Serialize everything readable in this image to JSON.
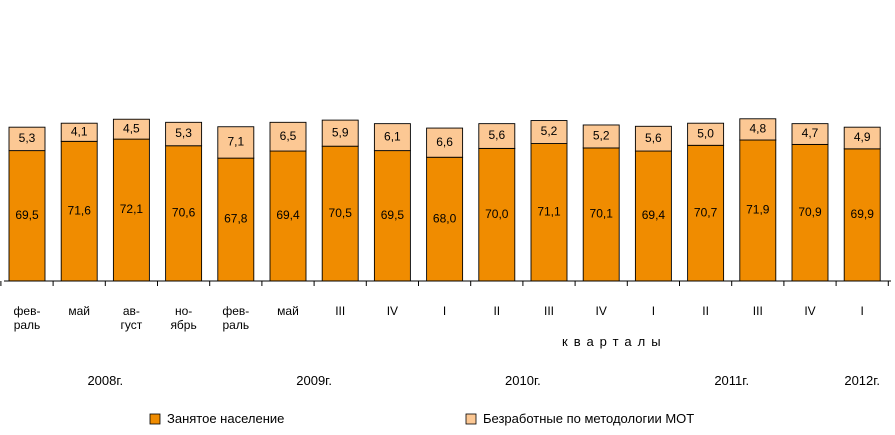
{
  "chart_data": {
    "type": "bar",
    "stacked": true,
    "categories": [
      [
        "фев-",
        "раль"
      ],
      [
        "май"
      ],
      [
        "ав-",
        "густ"
      ],
      [
        "но-",
        "ябрь"
      ],
      [
        "фев-",
        "раль"
      ],
      [
        "май"
      ],
      [
        "III"
      ],
      [
        "IV"
      ],
      [
        "I"
      ],
      [
        "II"
      ],
      [
        "III"
      ],
      [
        "IV"
      ],
      [
        "I"
      ],
      [
        "II"
      ],
      [
        "III"
      ],
      [
        "IV"
      ],
      [
        "I"
      ]
    ],
    "series": [
      {
        "name": "Занятое население",
        "color": "#f08c00",
        "values": [
          69.5,
          71.6,
          72.1,
          70.6,
          67.8,
          69.4,
          70.5,
          69.5,
          68.0,
          70.0,
          71.1,
          70.1,
          69.4,
          70.7,
          71.9,
          70.9,
          69.9
        ],
        "labels": [
          "69,5",
          "71,6",
          "72,1",
          "70,6",
          "67,8",
          "69,4",
          "70,5",
          "69,5",
          "68,0",
          "70,0",
          "71,1",
          "70,1",
          "69,4",
          "70,7",
          "71,9",
          "70,9",
          "69,9"
        ]
      },
      {
        "name": "Безработные по методологии МОТ",
        "color": "#fcc894",
        "values": [
          5.3,
          4.1,
          4.5,
          5.3,
          7.1,
          6.5,
          5.9,
          6.1,
          6.6,
          5.6,
          5.2,
          5.2,
          5.6,
          5.0,
          4.8,
          4.7,
          4.9
        ],
        "labels": [
          "5,3",
          "4,1",
          "4,5",
          "5,3",
          "7,1",
          "6,5",
          "5,9",
          "6,1",
          "6,6",
          "5,6",
          "5,2",
          "5,2",
          "5,6",
          "5,0",
          "4,8",
          "4,7",
          "4,9"
        ]
      }
    ],
    "years": [
      {
        "label": "2008г.",
        "from": 0,
        "to": 3
      },
      {
        "label": "2009г.",
        "from": 4,
        "to": 7
      },
      {
        "label": "2010г.",
        "from": 8,
        "to": 11
      },
      {
        "label": "2011г.",
        "from": 12,
        "to": 15
      },
      {
        "label": "2012г.",
        "from": 16,
        "to": 16
      }
    ],
    "quarters_label": "кварталы",
    "grid": false,
    "legend_position": "bottom"
  }
}
